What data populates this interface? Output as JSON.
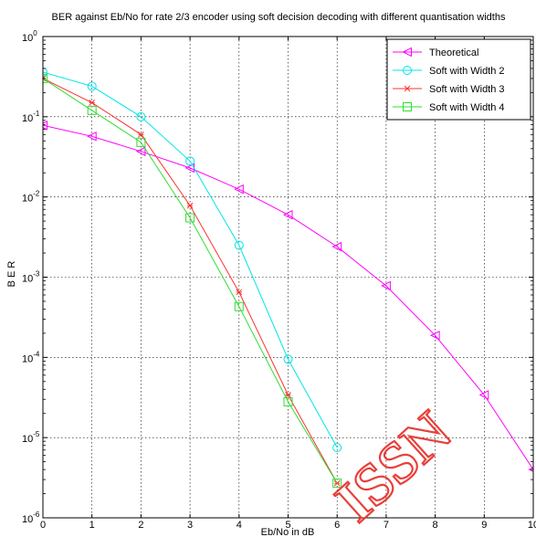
{
  "chart_data": {
    "type": "line",
    "title": "BER against Eb/No for rate 2/3 encoder using soft decision decoding with different quantisation widths",
    "xlabel": "Eb/No in dB",
    "ylabel": "B E R",
    "xlim": [
      0,
      10
    ],
    "ylim": [
      1e-06,
      1
    ],
    "yscale": "log",
    "grid": true,
    "legend_position": "top-right",
    "x_ticks": [
      "0",
      "1",
      "2",
      "3",
      "4",
      "5",
      "6",
      "7",
      "8",
      "9",
      "10"
    ],
    "y_ticks": [
      {
        "base": "10",
        "exp": "0"
      },
      {
        "base": "10",
        "exp": "-1"
      },
      {
        "base": "10",
        "exp": "-2"
      },
      {
        "base": "10",
        "exp": "-3"
      },
      {
        "base": "10",
        "exp": "-4"
      },
      {
        "base": "10",
        "exp": "-5"
      },
      {
        "base": "10",
        "exp": "-6"
      }
    ],
    "series": [
      {
        "name": "Theoretical",
        "color": "#ff00ff",
        "marker": "triangle-left",
        "x": [
          0,
          1,
          2,
          3,
          4,
          5,
          6,
          7,
          8,
          9,
          10
        ],
        "y": [
          0.078,
          0.057,
          0.037,
          0.023,
          0.0125,
          0.006,
          0.0024,
          0.00078,
          0.000188,
          3.4e-05,
          4e-06
        ]
      },
      {
        "name": "Soft with Width 2",
        "color": "#00e5e5",
        "marker": "circle",
        "x": [
          0,
          1,
          2,
          3,
          4,
          5,
          6
        ],
        "y": [
          0.36,
          0.24,
          0.1,
          0.028,
          0.0025,
          9.5e-05,
          7.5e-06
        ]
      },
      {
        "name": "Soft with Width 3",
        "color": "#ff3030",
        "marker": "star",
        "x": [
          0,
          1,
          2,
          3,
          4,
          5,
          6
        ],
        "y": [
          0.3,
          0.15,
          0.06,
          0.0078,
          0.00065,
          3.4e-05,
          2.7e-06
        ]
      },
      {
        "name": "Soft with Width 4",
        "color": "#30dd30",
        "marker": "square",
        "x": [
          0,
          1,
          2,
          3,
          4,
          5,
          6
        ],
        "y": [
          0.3,
          0.12,
          0.048,
          0.0055,
          0.00043,
          2.8e-05,
          2.7e-06
        ]
      }
    ]
  },
  "watermark": {
    "text": "ISSN",
    "color": "#e8403a"
  }
}
